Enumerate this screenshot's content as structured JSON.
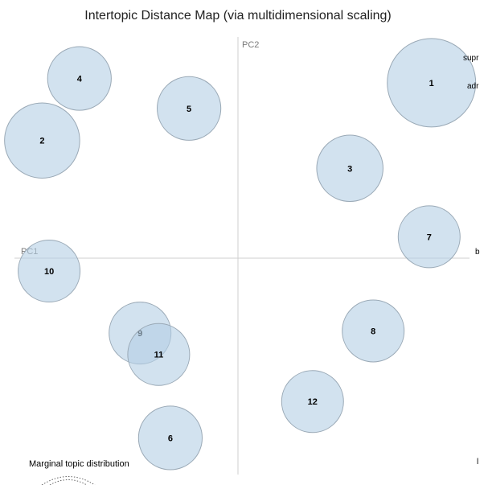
{
  "chart_data": {
    "type": "scatter",
    "title": "Intertopic Distance Map (via multidimensional scaling)",
    "xlabel": "PC1",
    "ylabel": "PC2",
    "xlim": [
      -1,
      1
    ],
    "ylim": [
      -1,
      1
    ],
    "grid": false,
    "bubble_fill": "#b4cfe4",
    "bubble_stroke": "#9aa9b6",
    "topics": [
      {
        "label": "1",
        "x": 0.83,
        "y": 0.82,
        "size": 1.0
      },
      {
        "label": "2",
        "x": -0.84,
        "y": 0.55,
        "size": 0.85
      },
      {
        "label": "3",
        "x": 0.48,
        "y": 0.42,
        "size": 0.75
      },
      {
        "label": "4",
        "x": -0.68,
        "y": 0.84,
        "size": 0.72
      },
      {
        "label": "5",
        "x": -0.21,
        "y": 0.7,
        "size": 0.72
      },
      {
        "label": "6",
        "x": -0.29,
        "y": -0.84,
        "size": 0.72
      },
      {
        "label": "7",
        "x": 0.82,
        "y": 0.1,
        "size": 0.7
      },
      {
        "label": "8",
        "x": 0.58,
        "y": -0.34,
        "size": 0.7
      },
      {
        "label": "9",
        "x": -0.42,
        "y": -0.35,
        "size": 0.7
      },
      {
        "label": "10",
        "x": -0.81,
        "y": -0.06,
        "size": 0.7
      },
      {
        "label": "11",
        "x": -0.34,
        "y": -0.45,
        "size": 0.7
      },
      {
        "label": "12",
        "x": 0.32,
        "y": -0.67,
        "size": 0.7
      }
    ]
  },
  "side_terms": [
    "supr",
    "adr",
    "b",
    "l"
  ],
  "marginal": {
    "label": "Marginal topic distribution"
  }
}
